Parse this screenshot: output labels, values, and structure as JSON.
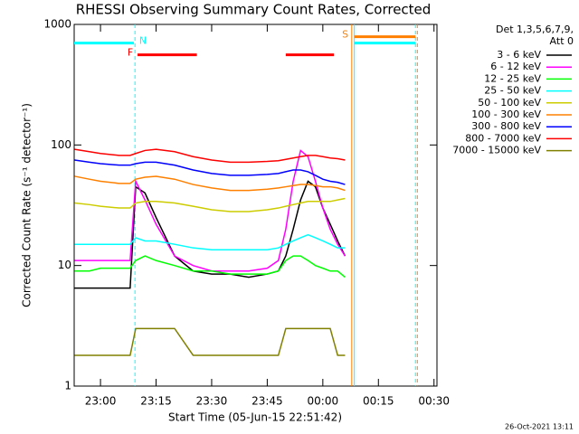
{
  "chart_data": {
    "type": "line",
    "title": "RHESSI Observing Summary Count Rates, Corrected",
    "ylabel": "Corrected Count Rate (s⁻¹ detector⁻¹)",
    "xlabel": "Start Time (05-Jun-15 22:51:42)",
    "legend_title": [
      "Det 1,3,5,6,7,9,",
      "Att 0"
    ],
    "footer": "26-Oct-2021 13:11",
    "yscale": "log",
    "ylim": [
      1,
      1000
    ],
    "yticks": [
      1,
      10,
      100,
      1000
    ],
    "xlim": [
      -7.1,
      90.8
    ],
    "xticks": [
      {
        "value": 0,
        "label": "23:00"
      },
      {
        "value": 15,
        "label": "23:15"
      },
      {
        "value": 30,
        "label": "23:30"
      },
      {
        "value": 45,
        "label": "23:45"
      },
      {
        "value": 60,
        "label": "00:00"
      },
      {
        "value": 75,
        "label": "00:15"
      },
      {
        "value": 90,
        "label": "00:30"
      }
    ],
    "x": [
      -7,
      -3,
      0,
      5,
      8,
      9.5,
      12,
      15,
      20,
      25,
      30,
      35,
      40,
      45,
      48,
      50,
      52,
      54,
      56,
      58,
      60,
      62,
      64,
      66
    ],
    "series": [
      {
        "name": "3 - 6 keV",
        "color": "#000000",
        "values": [
          6.5,
          6.5,
          6.5,
          6.5,
          6.5,
          45,
          40,
          25,
          12,
          9,
          8.5,
          8.5,
          8,
          8.5,
          9,
          12,
          20,
          35,
          50,
          45,
          30,
          22,
          16,
          12
        ]
      },
      {
        "name": "6 - 12 keV",
        "color": "#ff00ff",
        "values": [
          11,
          11,
          11,
          11,
          11,
          50,
          35,
          22,
          12,
          10,
          9,
          9,
          9,
          9.5,
          11,
          20,
          50,
          90,
          80,
          50,
          30,
          20,
          15,
          12
        ]
      },
      {
        "name": "12 - 25 keV",
        "color": "#00ff00",
        "values": [
          9,
          9,
          9.5,
          9.5,
          9.5,
          11,
          12,
          11,
          10,
          9,
          9,
          8.5,
          8.5,
          8.5,
          9,
          11,
          12,
          12,
          11,
          10,
          9.5,
          9,
          9,
          8
        ]
      },
      {
        "name": "25 - 50 keV",
        "color": "#00ffff",
        "values": [
          15,
          15,
          15,
          15,
          15,
          17,
          16,
          16,
          15,
          14,
          13.5,
          13.5,
          13.5,
          13.5,
          14,
          15,
          16,
          17,
          18,
          17,
          16,
          15,
          14,
          14
        ]
      },
      {
        "name": "50 - 100 keV",
        "color": "#cccc00",
        "values": [
          33,
          32,
          31,
          30,
          30,
          33,
          34,
          34,
          33,
          31,
          29,
          28,
          28,
          29,
          30,
          31,
          32,
          33,
          34,
          34,
          34,
          34,
          35,
          36
        ]
      },
      {
        "name": "100 - 300 keV",
        "color": "#ff8000",
        "values": [
          55,
          52,
          50,
          48,
          48,
          52,
          54,
          55,
          52,
          47,
          44,
          42,
          42,
          43,
          44,
          45,
          46,
          47,
          47,
          46,
          45,
          45,
          44,
          42
        ]
      },
      {
        "name": "300 - 800 keV",
        "color": "#0000ff",
        "values": [
          75,
          72,
          70,
          68,
          68,
          70,
          72,
          72,
          68,
          62,
          58,
          56,
          56,
          57,
          58,
          60,
          62,
          62,
          60,
          56,
          52,
          50,
          49,
          47
        ]
      },
      {
        "name": "800 - 7000 keV",
        "color": "#ff0000",
        "values": [
          92,
          88,
          85,
          82,
          82,
          85,
          90,
          92,
          88,
          80,
          75,
          72,
          72,
          73,
          74,
          76,
          78,
          80,
          82,
          82,
          80,
          78,
          77,
          75
        ]
      },
      {
        "name": "7000 - 15000 keV",
        "color": "#808000",
        "values": [
          1.8,
          1.8,
          1.8,
          1.8,
          1.8,
          3,
          3,
          3,
          3,
          1.8,
          1.8,
          1.8,
          1.8,
          1.8,
          1.8,
          3,
          3,
          3,
          3,
          3,
          3,
          3,
          1.8,
          1.8
        ]
      }
    ],
    "flags": [
      {
        "label": "N",
        "color": "#00ffff",
        "level": 700,
        "spans": [
          [
            -7.1,
            9
          ],
          [
            68.5,
            85
          ]
        ]
      },
      {
        "label": "F",
        "color": "#ff0000",
        "level": 560,
        "spans": [
          [
            10,
            26
          ],
          [
            50,
            63
          ]
        ]
      },
      {
        "label": "S",
        "color": "#ff8000",
        "level": 790,
        "spans": [
          [
            68.5,
            85
          ]
        ]
      }
    ],
    "vlines": [
      {
        "x": 9.3,
        "color": "#00ffff",
        "dashed": true
      },
      {
        "x": 67.8,
        "color": "#ff8000",
        "dashed": false
      },
      {
        "x": 68.5,
        "color": "#00ffff",
        "dashed": false
      },
      {
        "x": 85,
        "color": "#00ffff",
        "dashed": true
      },
      {
        "x": 85.5,
        "color": "#ff8000",
        "dashed": true
      }
    ]
  }
}
